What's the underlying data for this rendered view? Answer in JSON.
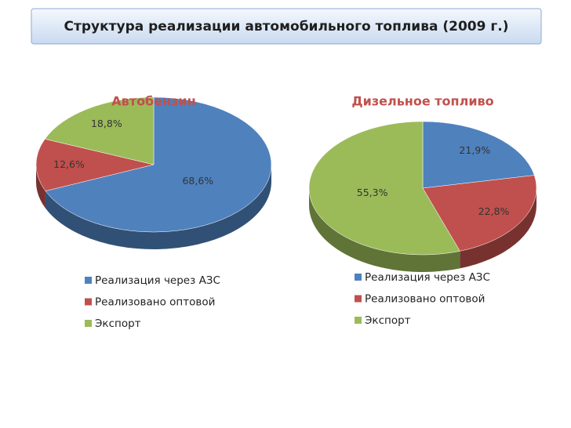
{
  "title": "Структура реализации автомобильного топлива (2009 г.)",
  "chart_data": [
    {
      "type": "pie",
      "title": "Автобензин",
      "categories": [
        "Реализация через АЗС",
        "Реализовано оптовой",
        "Экспорт"
      ],
      "values": [
        68.6,
        12.6,
        18.8
      ],
      "value_labels": [
        "68,6%",
        "12,6%",
        "18,8%"
      ],
      "colors": [
        "#4f81bd",
        "#c0504d",
        "#9bbb59"
      ]
    },
    {
      "type": "pie",
      "title": "Дизельное топливо",
      "categories": [
        "Реализация через АЗС",
        "Реализовано оптовой",
        "Экспорт"
      ],
      "values": [
        21.9,
        22.8,
        55.3
      ],
      "value_labels": [
        "21,9%",
        "22,8%",
        "55,3%"
      ],
      "colors": [
        "#4f81bd",
        "#c0504d",
        "#9bbb59"
      ]
    }
  ]
}
